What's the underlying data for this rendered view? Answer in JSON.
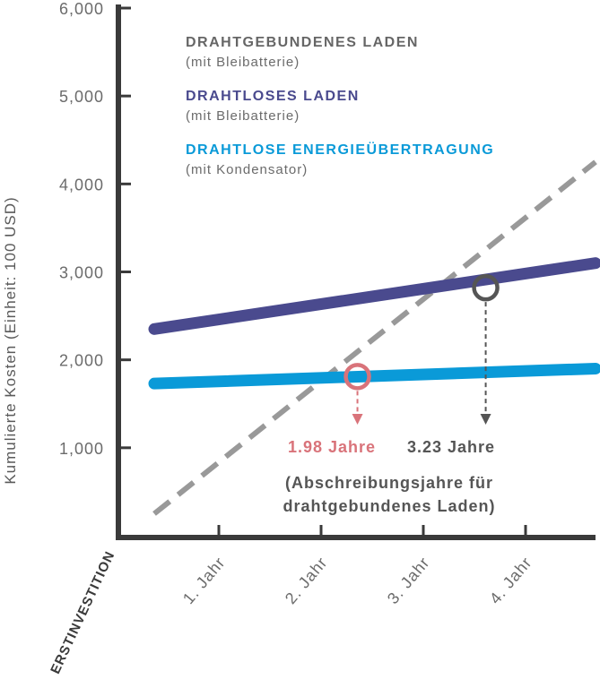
{
  "chart_data": {
    "type": "line",
    "ylabel": "Kumulierte Kosten (Einheit: 100 USD)",
    "ylim": [
      0,
      6000
    ],
    "y_ticks": [
      "1,000",
      "2,000",
      "3,000",
      "4,000",
      "5,000",
      "6,000"
    ],
    "y_tick_values": [
      1000,
      2000,
      3000,
      4000,
      5000,
      6000
    ],
    "categories": [
      "ERSTINVESTITION",
      "1. Jahr",
      "2. Jahr",
      "3. Jahr",
      "4. Jahr"
    ],
    "xlim": [
      0,
      4.3
    ],
    "series": [
      {
        "name": "DRAHTGEBUNDENES LADEN",
        "note": "(mit Bleibatterie)",
        "color": "#999999",
        "style": "dashed",
        "x": [
          0,
          4.3
        ],
        "y": [
          250,
          4250
        ]
      },
      {
        "name": "DRAHTLOSES LADEN",
        "note": "(mit Bleibatterie)",
        "color": "#4a4a8e",
        "style": "solid",
        "x": [
          0,
          4.3
        ],
        "y": [
          2350,
          3100
        ]
      },
      {
        "name": "DRAHTLOSE ENERGIEÜBERTRAGUNG",
        "note": "(mit Kondensator)",
        "color": "#0a9ad8",
        "style": "solid",
        "x": [
          0,
          4.3
        ],
        "y": [
          1730,
          1900
        ]
      }
    ],
    "markers": [
      {
        "label": "1.98 Jahre",
        "x": 1.98,
        "y": 1810,
        "color": "#d9737a"
      },
      {
        "label": "3.23 Jahre",
        "x": 3.23,
        "y": 2820,
        "color": "#555555"
      }
    ],
    "annotation": [
      "(Abschreibungsjahre für",
      "drahtgebundenes Laden)"
    ],
    "annotation_color": "#555555",
    "grid": false
  }
}
